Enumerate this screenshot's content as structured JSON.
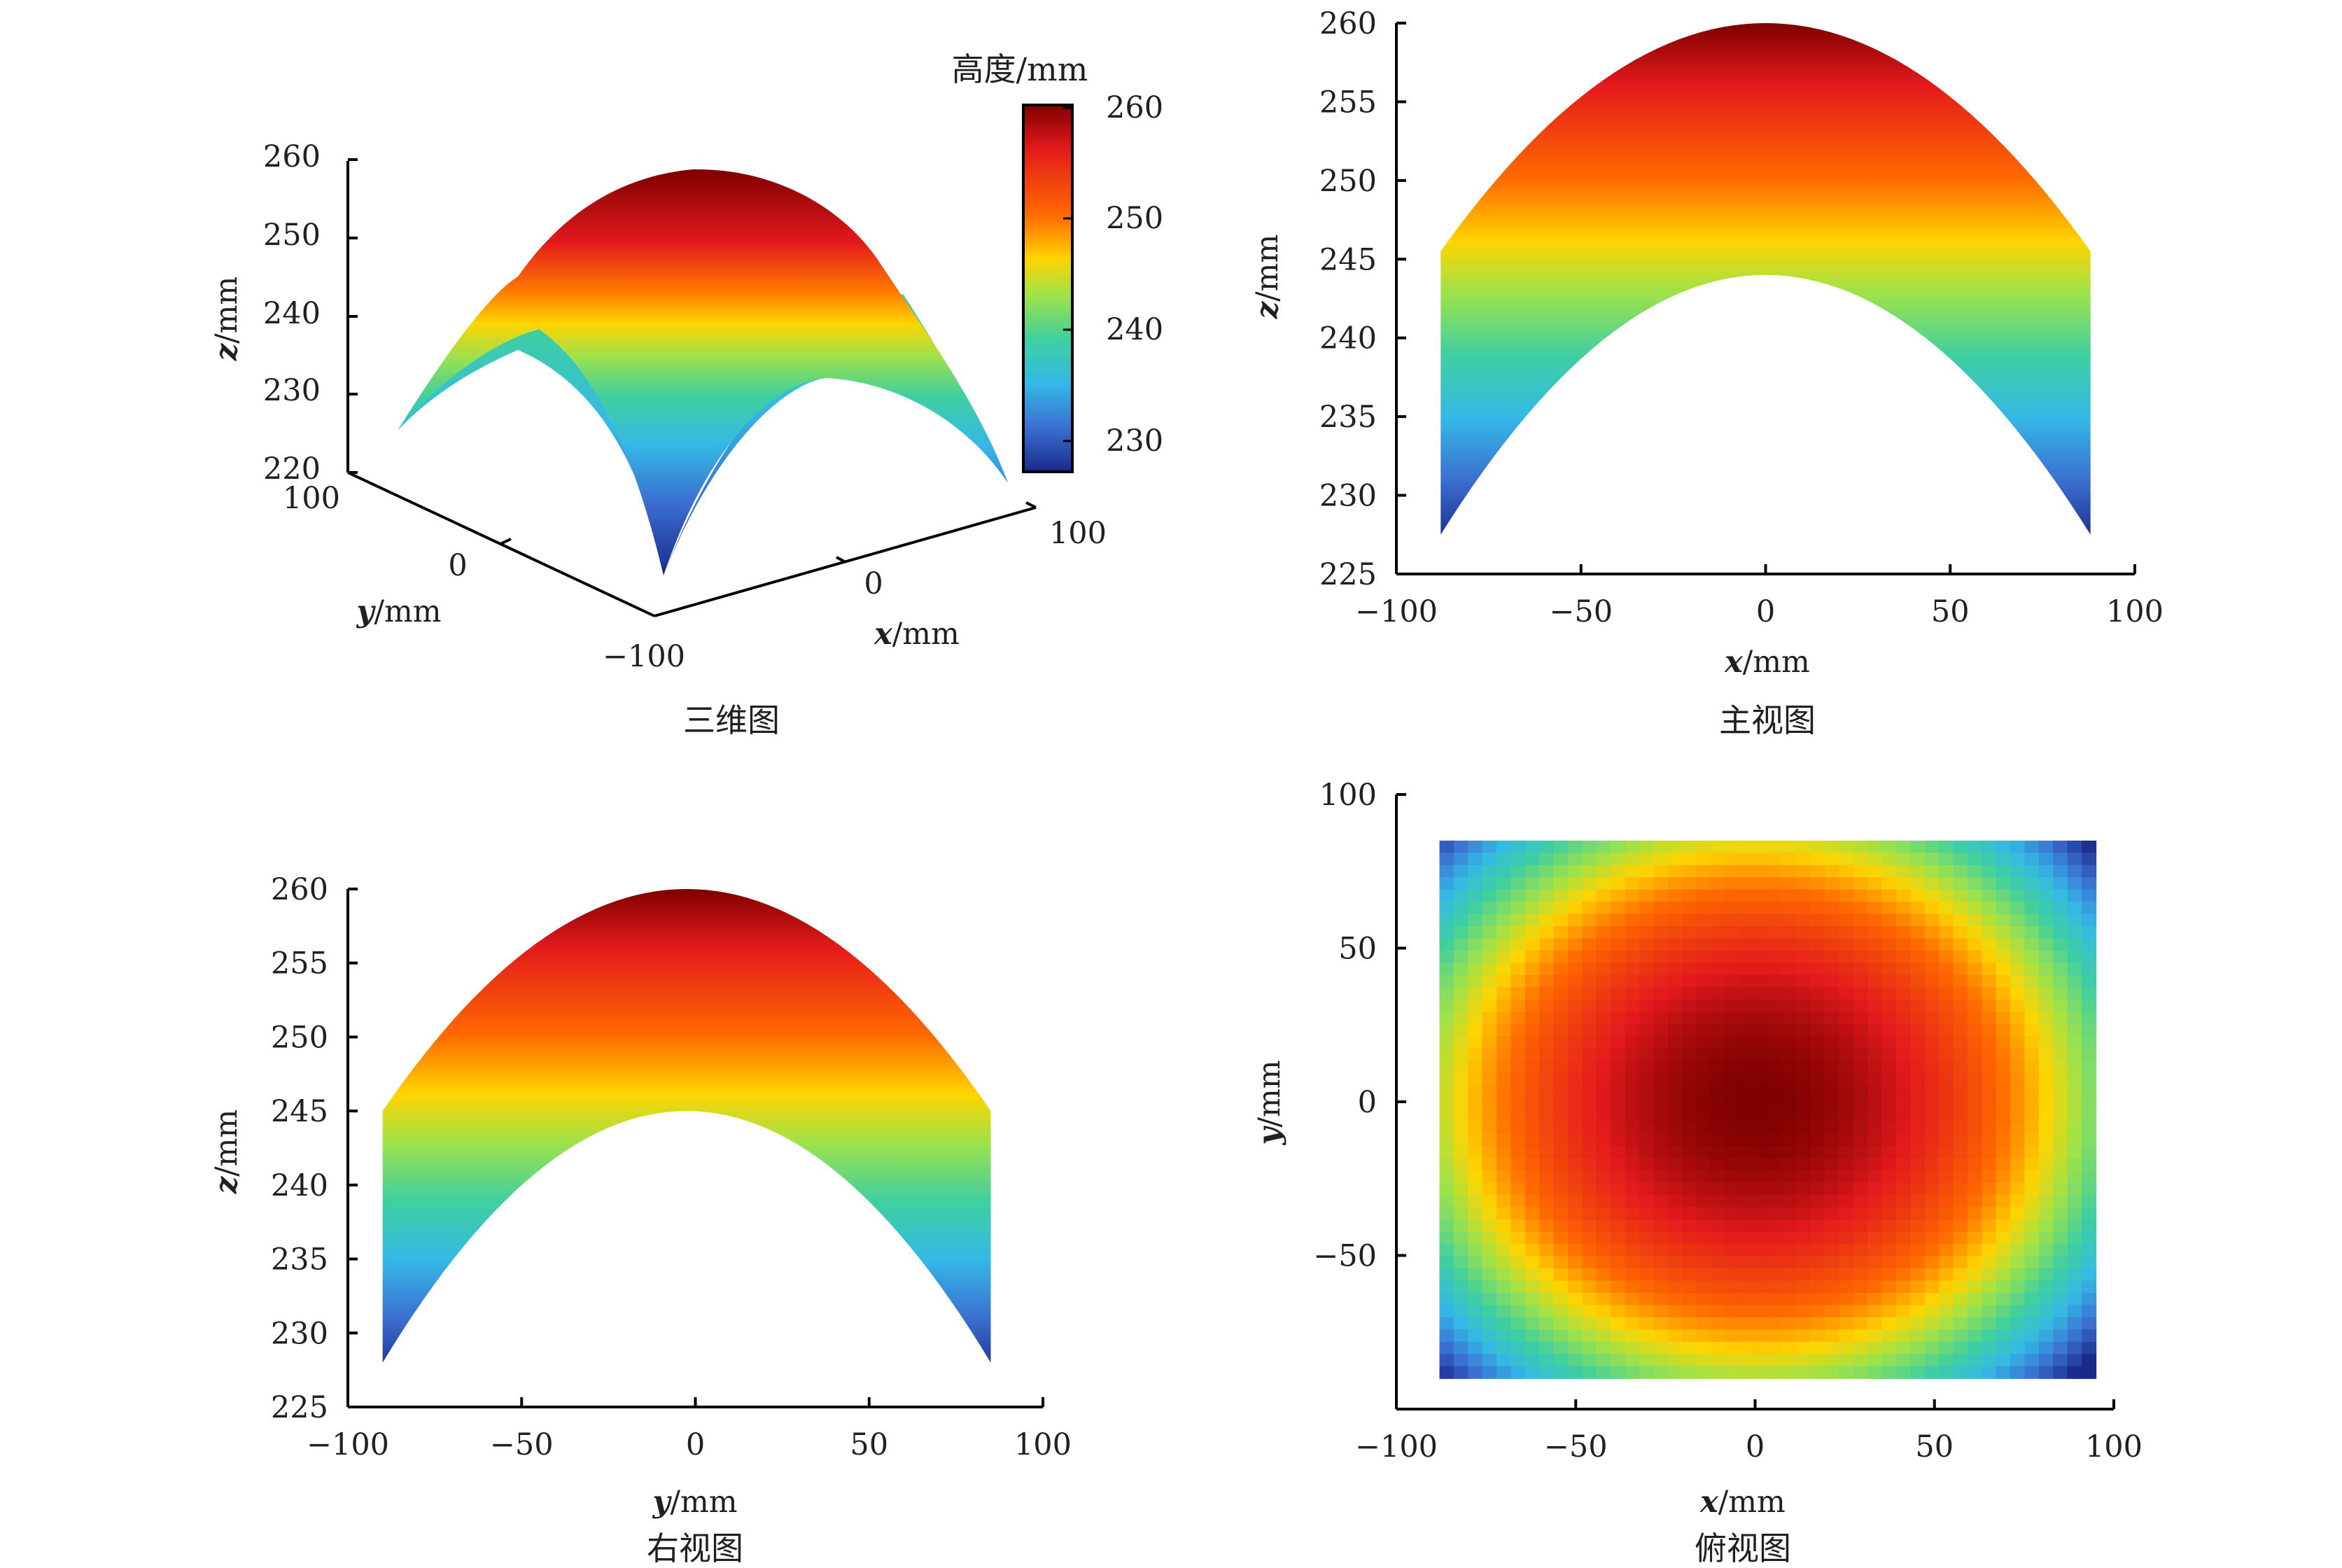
{
  "figure": {
    "panels": [
      {
        "id": "3d",
        "caption": "三维图"
      },
      {
        "id": "front",
        "caption": "主视图"
      },
      {
        "id": "side",
        "caption": "右视图"
      },
      {
        "id": "top",
        "caption": "俯视图"
      }
    ]
  },
  "colorbar": {
    "title": "高度/mm",
    "range": [
      227,
      260
    ],
    "ticks": [
      "260",
      "250",
      "240",
      "230"
    ],
    "colormap": "jet"
  },
  "chart_data": [
    {
      "type": "surface3d",
      "caption": "三维图",
      "surface": "z = 260 - 0.002*(x^2 + y^2)",
      "x_range": [
        -88,
        88
      ],
      "y_range": [
        -92,
        88
      ],
      "zlim": [
        220,
        260
      ],
      "xlabel_var": "x",
      "xlabel_unit": "/mm",
      "ylabel_var": "y",
      "ylabel_unit": "/mm",
      "zlabel_var": "z",
      "zlabel_unit": "/mm",
      "z_ticks": [
        "260",
        "250",
        "240",
        "230",
        "220"
      ],
      "x_ticks": [
        "0",
        "100"
      ],
      "y_ticks": [
        "100",
        "0",
        "−100"
      ]
    },
    {
      "type": "surface_projection",
      "caption": "主视图",
      "xlim": [
        -100,
        100
      ],
      "ylim": [
        225,
        260
      ],
      "x_range": [
        -88,
        88
      ],
      "top_curve": {
        "peak": 260,
        "edge": 245.5
      },
      "bottom_curve": {
        "peak": 244,
        "edge": 227.5
      },
      "x_ticks": [
        "−100",
        "−50",
        "0",
        "50",
        "100"
      ],
      "y_ticks": [
        "260",
        "255",
        "250",
        "245",
        "240",
        "235",
        "230",
        "225"
      ],
      "xlabel_var": "x",
      "xlabel_unit": "/mm",
      "ylabel_var": "z",
      "ylabel_unit": "/mm"
    },
    {
      "type": "surface_projection",
      "caption": "右视图",
      "xlim": [
        -100,
        100
      ],
      "ylim": [
        225,
        260
      ],
      "x_range": [
        -90,
        85
      ],
      "top_curve": {
        "peak": 260,
        "edge": 245
      },
      "bottom_curve": {
        "peak": 245,
        "edge": 228
      },
      "x_ticks": [
        "−100",
        "−50",
        "0",
        "50",
        "100"
      ],
      "y_ticks": [
        "260",
        "255",
        "250",
        "245",
        "240",
        "235",
        "230",
        "225"
      ],
      "xlabel_var": "y",
      "xlabel_unit": "/mm",
      "ylabel_var": "z",
      "ylabel_unit": "/mm"
    },
    {
      "type": "heatmap",
      "caption": "俯视图",
      "xlim": [
        -100,
        100
      ],
      "ylim": [
        -100,
        100
      ],
      "x_range": [
        -88,
        95
      ],
      "y_range": [
        -90,
        85
      ],
      "center": [
        0,
        0
      ],
      "value_range": [
        227,
        260
      ],
      "x_ticks": [
        "−100",
        "−50",
        "0",
        "50",
        "100"
      ],
      "y_ticks": [
        "100",
        "50",
        "0",
        "−50"
      ],
      "xlabel_var": "x",
      "xlabel_unit": "/mm",
      "ylabel_var": "y",
      "ylabel_unit": "/mm"
    }
  ]
}
